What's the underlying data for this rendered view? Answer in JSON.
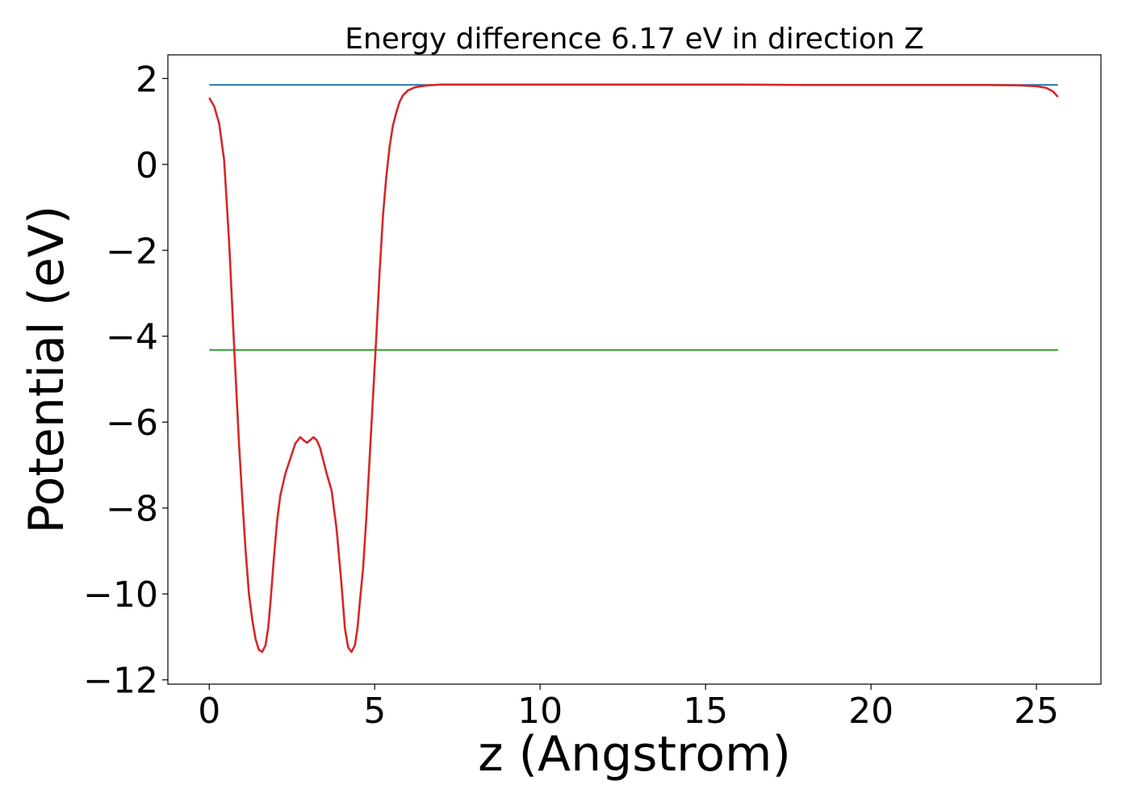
{
  "chart_data": {
    "type": "line",
    "title": "Energy difference 6.17 eV in direction Z",
    "xlabel": "z (Angstrom)",
    "ylabel": "Potential (eV)",
    "xlim": [
      -1.25,
      26.95
    ],
    "ylim": [
      -12.1,
      2.55
    ],
    "xticks": [
      0,
      5,
      10,
      15,
      20,
      25
    ],
    "xtick_labels": [
      "0",
      "5",
      "10",
      "15",
      "20",
      "25"
    ],
    "yticks": [
      2,
      0,
      -2,
      -4,
      -6,
      -8,
      -10,
      -12
    ],
    "ytick_labels": [
      "2",
      "0",
      "−2",
      "−4",
      "−6",
      "−8",
      "−10",
      "−12"
    ],
    "grid": false,
    "legend": "none",
    "series": [
      {
        "color": "#1f77b4",
        "x": [
          0,
          25.65
        ],
        "y": [
          1.85,
          1.85
        ]
      },
      {
        "color": "#2ca02c",
        "x": [
          0,
          25.65
        ],
        "y": [
          -4.32,
          -4.32
        ]
      },
      {
        "color": "#d62728",
        "x": [
          0,
          0.15,
          0.3,
          0.45,
          0.6,
          0.75,
          0.9,
          1.0,
          1.1,
          1.2,
          1.3,
          1.4,
          1.5,
          1.6,
          1.7,
          1.78,
          1.85,
          1.95,
          2.05,
          2.15,
          2.3,
          2.45,
          2.6,
          2.75,
          2.85,
          2.95,
          3.05,
          3.15,
          3.25,
          3.35,
          3.45,
          3.55,
          3.7,
          3.85,
          4.0,
          4.1,
          4.2,
          4.3,
          4.4,
          4.48,
          4.55,
          4.65,
          4.75,
          4.85,
          4.95,
          5.05,
          5.15,
          5.25,
          5.35,
          5.45,
          5.55,
          5.65,
          5.75,
          5.85,
          6.0,
          6.2,
          6.4,
          6.6,
          6.8,
          7.0,
          7.3,
          7.6,
          8.0,
          9.0,
          10.0,
          12.0,
          14.0,
          16.0,
          18.0,
          20.0,
          22.0,
          23.5,
          24.5,
          25.0,
          25.3,
          25.5,
          25.65
        ],
        "y": [
          1.55,
          1.35,
          0.95,
          0.1,
          -1.8,
          -4.2,
          -6.5,
          -7.8,
          -9.0,
          -10.0,
          -10.6,
          -11.05,
          -11.3,
          -11.35,
          -11.2,
          -10.8,
          -10.2,
          -9.2,
          -8.3,
          -7.7,
          -7.2,
          -6.85,
          -6.5,
          -6.35,
          -6.42,
          -6.48,
          -6.42,
          -6.35,
          -6.42,
          -6.6,
          -6.9,
          -7.2,
          -7.6,
          -8.5,
          -9.8,
          -10.8,
          -11.25,
          -11.35,
          -11.2,
          -10.8,
          -10.2,
          -9.4,
          -8.2,
          -6.8,
          -5.4,
          -4.0,
          -2.5,
          -1.2,
          -0.3,
          0.4,
          0.9,
          1.2,
          1.45,
          1.6,
          1.72,
          1.79,
          1.82,
          1.84,
          1.85,
          1.86,
          1.86,
          1.86,
          1.86,
          1.86,
          1.86,
          1.86,
          1.86,
          1.86,
          1.85,
          1.85,
          1.85,
          1.85,
          1.84,
          1.82,
          1.78,
          1.7,
          1.57
        ]
      }
    ]
  }
}
